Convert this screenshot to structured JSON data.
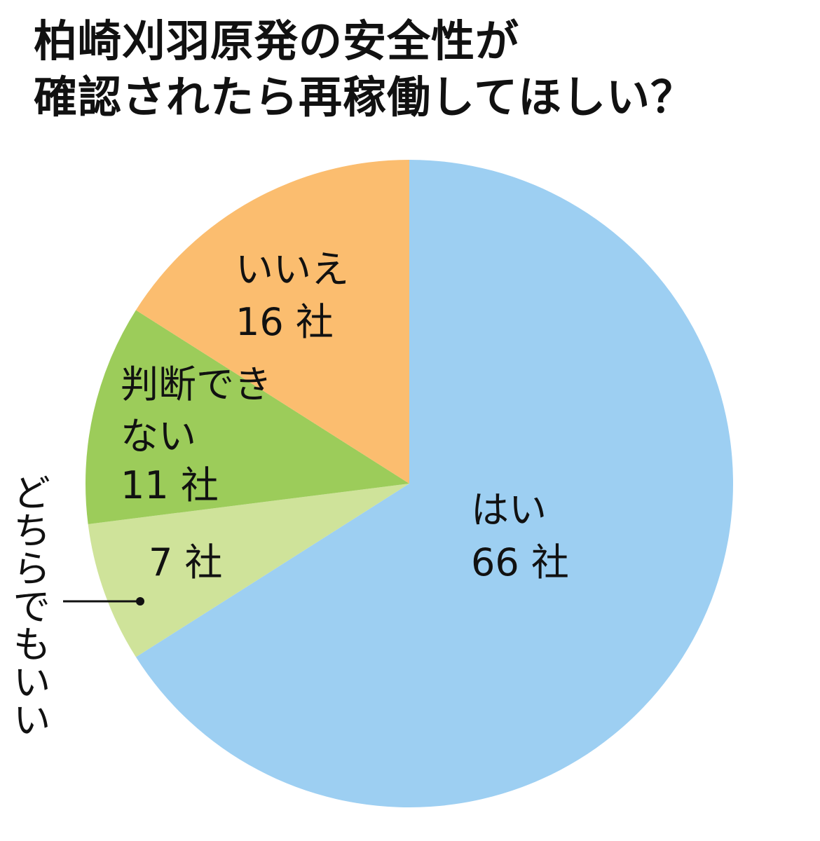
{
  "chart_data": {
    "type": "pie",
    "title": [
      "柏崎刈羽原発の安全性が",
      "確認されたら再稼働してほしい？"
    ],
    "categories": [
      "はい",
      "どちらでもいい",
      "判断できない",
      "いいえ"
    ],
    "values": [
      66,
      7,
      11,
      16
    ],
    "value_labels": [
      "66 社",
      "7 社",
      "11 社",
      "16 社"
    ],
    "colors": [
      "#9dcff2",
      "#cfe39a",
      "#9ccc5a",
      "#fbbd6f"
    ]
  }
}
